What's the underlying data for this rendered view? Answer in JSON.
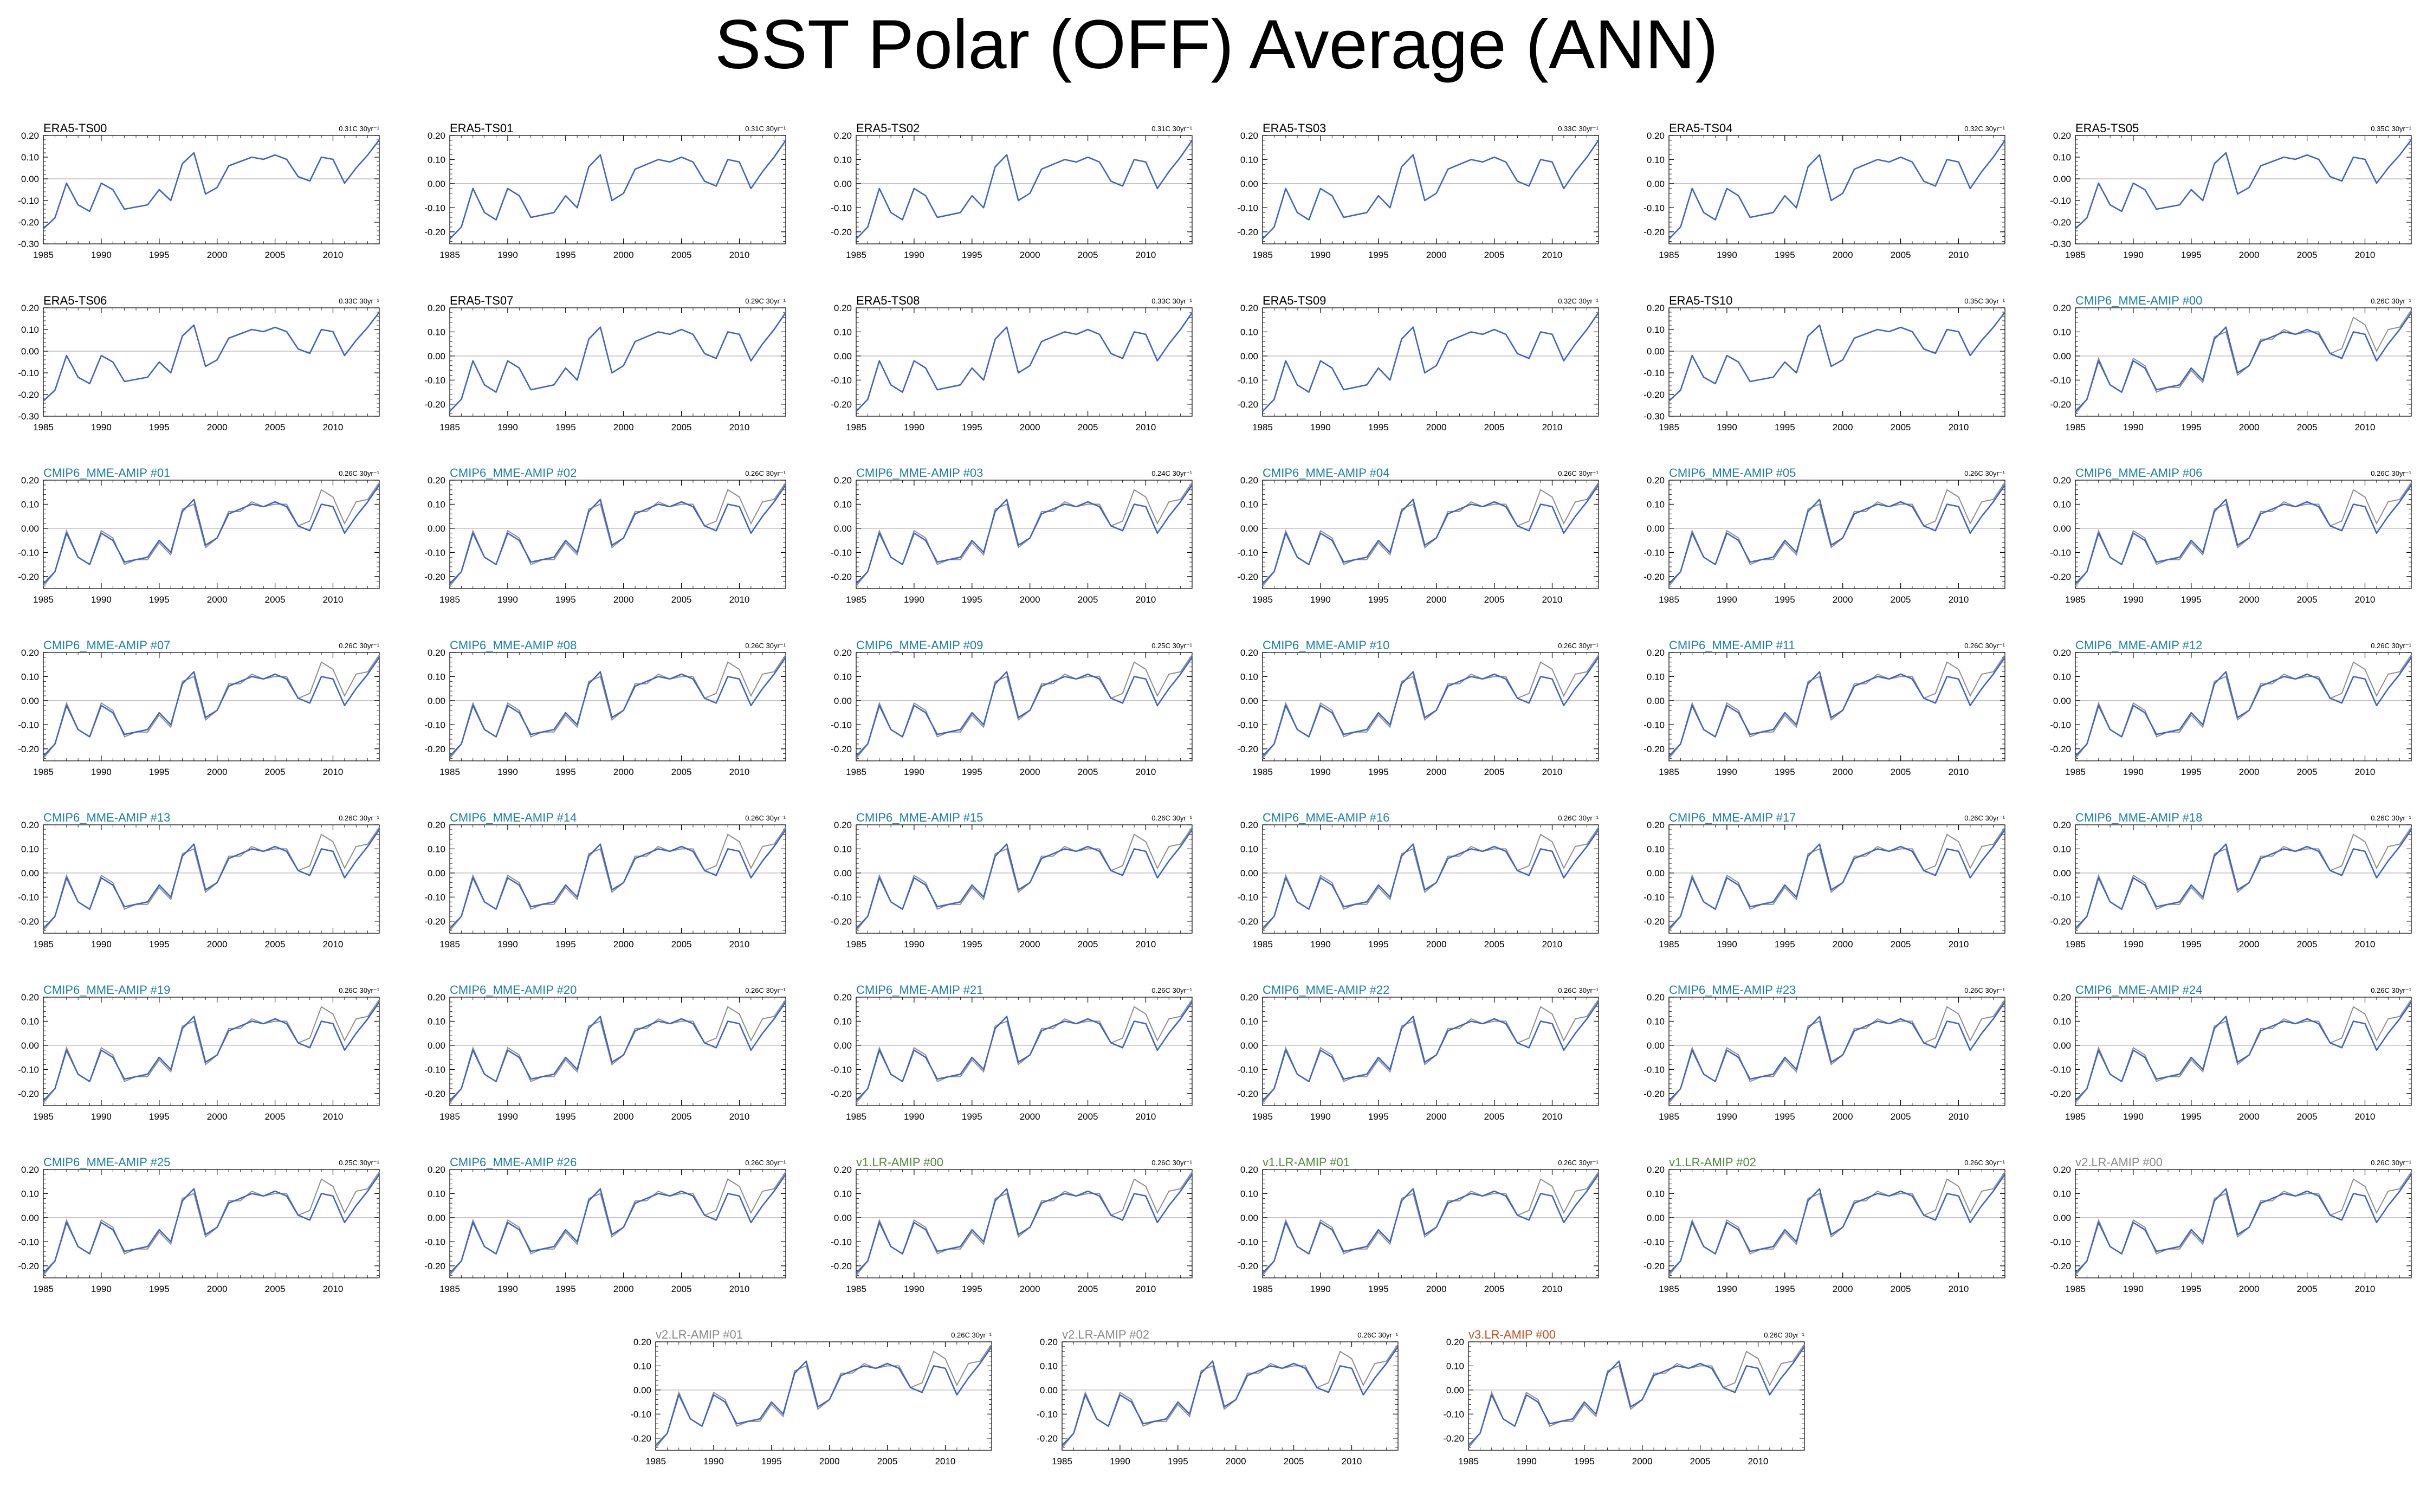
{
  "title": "SST Polar (OFF) Average (ANN)",
  "colors": {
    "obs": "#000000",
    "cmip": "#1a7fa8",
    "v1": "#4f8a3c",
    "v2": "#8a8a8a",
    "v3": "#c0501f",
    "model_line": "#3a64c8",
    "ref_line": "#8f8f8f",
    "zero_line": "#b0b0b0"
  },
  "chart_data": {
    "type": "line",
    "x_start": 1985,
    "x_end": 2014,
    "x_ticks": [
      1985,
      1990,
      1995,
      2000,
      2005,
      2010
    ],
    "reference": [
      -0.24,
      -0.18,
      -0.01,
      -0.12,
      -0.15,
      -0.01,
      -0.04,
      -0.15,
      -0.13,
      -0.13,
      -0.06,
      -0.11,
      0.08,
      0.1,
      -0.08,
      -0.04,
      0.07,
      0.07,
      0.11,
      0.09,
      0.1,
      0.1,
      0.01,
      0.03,
      0.16,
      0.13,
      0.02,
      0.11,
      0.12,
      0.19
    ],
    "model": [
      -0.23,
      -0.18,
      -0.02,
      -0.12,
      -0.15,
      -0.02,
      -0.05,
      -0.14,
      -0.13,
      -0.12,
      -0.05,
      -0.1,
      0.07,
      0.12,
      -0.07,
      -0.04,
      0.06,
      0.08,
      0.1,
      0.09,
      0.11,
      0.09,
      0.01,
      -0.01,
      0.1,
      0.09,
      -0.02,
      0.05,
      0.11,
      0.18
    ],
    "panels": [
      {
        "name": "ERA5-TS00",
        "trend": "0.31C 30yr⁻¹",
        "group": "obs",
        "ylim": [
          -0.3,
          0.2
        ],
        "yticks": [
          "0.20",
          "0.10",
          "0.00",
          "-0.10",
          "-0.20",
          "-0.30"
        ]
      },
      {
        "name": "ERA5-TS01",
        "trend": "0.31C 30yr⁻¹",
        "group": "obs",
        "ylim": [
          -0.25,
          0.2
        ],
        "yticks": [
          "0.20",
          "0.10",
          "0.00",
          "-0.10",
          "-0.20"
        ]
      },
      {
        "name": "ERA5-TS02",
        "trend": "0.31C 30yr⁻¹",
        "group": "obs",
        "ylim": [
          -0.25,
          0.2
        ],
        "yticks": [
          "0.20",
          "0.10",
          "0.00",
          "-0.10",
          "-0.20"
        ]
      },
      {
        "name": "ERA5-TS03",
        "trend": "0.33C 30yr⁻¹",
        "group": "obs",
        "ylim": [
          -0.25,
          0.2
        ],
        "yticks": [
          "0.20",
          "0.10",
          "0.00",
          "-0.10",
          "-0.20"
        ]
      },
      {
        "name": "ERA5-TS04",
        "trend": "0.32C 30yr⁻¹",
        "group": "obs",
        "ylim": [
          -0.25,
          0.2
        ],
        "yticks": [
          "0.20",
          "0.10",
          "0.00",
          "-0.10",
          "-0.20"
        ]
      },
      {
        "name": "ERA5-TS05",
        "trend": "0.35C 30yr⁻¹",
        "group": "obs",
        "ylim": [
          -0.3,
          0.2
        ],
        "yticks": [
          "0.20",
          "0.10",
          "0.00",
          "-0.10",
          "-0.20",
          "-0.30"
        ]
      },
      {
        "name": "ERA5-TS06",
        "trend": "0.33C 30yr⁻¹",
        "group": "obs",
        "ylim": [
          -0.3,
          0.2
        ],
        "yticks": [
          "0.20",
          "0.10",
          "0.00",
          "-0.10",
          "-0.20",
          "-0.30"
        ]
      },
      {
        "name": "ERA5-TS07",
        "trend": "0.29C 30yr⁻¹",
        "group": "obs",
        "ylim": [
          -0.25,
          0.2
        ],
        "yticks": [
          "0.20",
          "0.10",
          "0.00",
          "-0.10",
          "-0.20"
        ]
      },
      {
        "name": "ERA5-TS08",
        "trend": "0.33C 30yr⁻¹",
        "group": "obs",
        "ylim": [
          -0.25,
          0.2
        ],
        "yticks": [
          "0.20",
          "0.10",
          "0.00",
          "-0.10",
          "-0.20"
        ]
      },
      {
        "name": "ERA5-TS09",
        "trend": "0.32C 30yr⁻¹",
        "group": "obs",
        "ylim": [
          -0.25,
          0.2
        ],
        "yticks": [
          "0.20",
          "0.10",
          "0.00",
          "-0.10",
          "-0.20"
        ]
      },
      {
        "name": "ERA5-TS10",
        "trend": "0.35C 30yr⁻¹",
        "group": "obs",
        "ylim": [
          -0.3,
          0.2
        ],
        "yticks": [
          "0.20",
          "0.10",
          "0.00",
          "-0.10",
          "-0.20",
          "-0.30"
        ]
      },
      {
        "name": "CMIP6_MME-AMIP  #00",
        "trend": "0.26C 30yr⁻¹",
        "group": "cmip",
        "ylim": [
          -0.25,
          0.2
        ],
        "yticks": [
          "0.20",
          "0.10",
          "0.00",
          "-0.10",
          "-0.20"
        ]
      },
      {
        "name": "CMIP6_MME-AMIP  #01",
        "trend": "0.26C 30yr⁻¹",
        "group": "cmip",
        "ylim": [
          -0.25,
          0.2
        ],
        "yticks": [
          "0.20",
          "0.10",
          "0.00",
          "-0.10",
          "-0.20"
        ]
      },
      {
        "name": "CMIP6_MME-AMIP  #02",
        "trend": "0.26C 30yr⁻¹",
        "group": "cmip",
        "ylim": [
          -0.25,
          0.2
        ],
        "yticks": [
          "0.20",
          "0.10",
          "0.00",
          "-0.10",
          "-0.20"
        ]
      },
      {
        "name": "CMIP6_MME-AMIP  #03",
        "trend": "0.24C 30yr⁻¹",
        "group": "cmip",
        "ylim": [
          -0.25,
          0.2
        ],
        "yticks": [
          "0.20",
          "0.10",
          "0.00",
          "-0.10",
          "-0.20"
        ]
      },
      {
        "name": "CMIP6_MME-AMIP  #04",
        "trend": "0.26C 30yr⁻¹",
        "group": "cmip",
        "ylim": [
          -0.25,
          0.2
        ],
        "yticks": [
          "0.20",
          "0.10",
          "0.00",
          "-0.10",
          "-0.20"
        ]
      },
      {
        "name": "CMIP6_MME-AMIP  #05",
        "trend": "0.26C 30yr⁻¹",
        "group": "cmip",
        "ylim": [
          -0.25,
          0.2
        ],
        "yticks": [
          "0.20",
          "0.10",
          "0.00",
          "-0.10",
          "-0.20"
        ]
      },
      {
        "name": "CMIP6_MME-AMIP  #06",
        "trend": "0.26C 30yr⁻¹",
        "group": "cmip",
        "ylim": [
          -0.25,
          0.2
        ],
        "yticks": [
          "0.20",
          "0.10",
          "0.00",
          "-0.10",
          "-0.20"
        ]
      },
      {
        "name": "CMIP6_MME-AMIP  #07",
        "trend": "0.26C 30yr⁻¹",
        "group": "cmip",
        "ylim": [
          -0.25,
          0.2
        ],
        "yticks": [
          "0.20",
          "0.10",
          "0.00",
          "-0.10",
          "-0.20"
        ]
      },
      {
        "name": "CMIP6_MME-AMIP  #08",
        "trend": "0.26C 30yr⁻¹",
        "group": "cmip",
        "ylim": [
          -0.25,
          0.2
        ],
        "yticks": [
          "0.20",
          "0.10",
          "0.00",
          "-0.10",
          "-0.20"
        ]
      },
      {
        "name": "CMIP6_MME-AMIP  #09",
        "trend": "0.25C 30yr⁻¹",
        "group": "cmip",
        "ylim": [
          -0.25,
          0.2
        ],
        "yticks": [
          "0.20",
          "0.10",
          "0.00",
          "-0.10",
          "-0.20"
        ]
      },
      {
        "name": "CMIP6_MME-AMIP  #10",
        "trend": "0.26C 30yr⁻¹",
        "group": "cmip",
        "ylim": [
          -0.25,
          0.2
        ],
        "yticks": [
          "0.20",
          "0.10",
          "0.00",
          "-0.10",
          "-0.20"
        ]
      },
      {
        "name": "CMIP6_MME-AMIP  #11",
        "trend": "0.26C 30yr⁻¹",
        "group": "cmip",
        "ylim": [
          -0.25,
          0.2
        ],
        "yticks": [
          "0.20",
          "0.10",
          "0.00",
          "-0.10",
          "-0.20"
        ]
      },
      {
        "name": "CMIP6_MME-AMIP  #12",
        "trend": "0.26C 30yr⁻¹",
        "group": "cmip",
        "ylim": [
          -0.25,
          0.2
        ],
        "yticks": [
          "0.20",
          "0.10",
          "0.00",
          "-0.10",
          "-0.20"
        ]
      },
      {
        "name": "CMIP6_MME-AMIP  #13",
        "trend": "0.26C 30yr⁻¹",
        "group": "cmip",
        "ylim": [
          -0.25,
          0.2
        ],
        "yticks": [
          "0.20",
          "0.10",
          "0.00",
          "-0.10",
          "-0.20"
        ]
      },
      {
        "name": "CMIP6_MME-AMIP  #14",
        "trend": "0.26C 30yr⁻¹",
        "group": "cmip",
        "ylim": [
          -0.25,
          0.2
        ],
        "yticks": [
          "0.20",
          "0.10",
          "0.00",
          "-0.10",
          "-0.20"
        ]
      },
      {
        "name": "CMIP6_MME-AMIP  #15",
        "trend": "0.26C 30yr⁻¹",
        "group": "cmip",
        "ylim": [
          -0.25,
          0.2
        ],
        "yticks": [
          "0.20",
          "0.10",
          "0.00",
          "-0.10",
          "-0.20"
        ]
      },
      {
        "name": "CMIP6_MME-AMIP  #16",
        "trend": "0.26C 30yr⁻¹",
        "group": "cmip",
        "ylim": [
          -0.25,
          0.2
        ],
        "yticks": [
          "0.20",
          "0.10",
          "0.00",
          "-0.10",
          "-0.20"
        ]
      },
      {
        "name": "CMIP6_MME-AMIP  #17",
        "trend": "0.26C 30yr⁻¹",
        "group": "cmip",
        "ylim": [
          -0.25,
          0.2
        ],
        "yticks": [
          "0.20",
          "0.10",
          "0.00",
          "-0.10",
          "-0.20"
        ]
      },
      {
        "name": "CMIP6_MME-AMIP  #18",
        "trend": "0.26C 30yr⁻¹",
        "group": "cmip",
        "ylim": [
          -0.25,
          0.2
        ],
        "yticks": [
          "0.20",
          "0.10",
          "0.00",
          "-0.10",
          "-0.20"
        ]
      },
      {
        "name": "CMIP6_MME-AMIP  #19",
        "trend": "0.26C 30yr⁻¹",
        "group": "cmip",
        "ylim": [
          -0.25,
          0.2
        ],
        "yticks": [
          "0.20",
          "0.10",
          "0.00",
          "-0.10",
          "-0.20"
        ]
      },
      {
        "name": "CMIP6_MME-AMIP  #20",
        "trend": "0.26C 30yr⁻¹",
        "group": "cmip",
        "ylim": [
          -0.25,
          0.2
        ],
        "yticks": [
          "0.20",
          "0.10",
          "0.00",
          "-0.10",
          "-0.20"
        ]
      },
      {
        "name": "CMIP6_MME-AMIP  #21",
        "trend": "0.26C 30yr⁻¹",
        "group": "cmip",
        "ylim": [
          -0.25,
          0.2
        ],
        "yticks": [
          "0.20",
          "0.10",
          "0.00",
          "-0.10",
          "-0.20"
        ]
      },
      {
        "name": "CMIP6_MME-AMIP  #22",
        "trend": "0.26C 30yr⁻¹",
        "group": "cmip",
        "ylim": [
          -0.25,
          0.2
        ],
        "yticks": [
          "0.20",
          "0.10",
          "0.00",
          "-0.10",
          "-0.20"
        ]
      },
      {
        "name": "CMIP6_MME-AMIP  #23",
        "trend": "0.26C 30yr⁻¹",
        "group": "cmip",
        "ylim": [
          -0.25,
          0.2
        ],
        "yticks": [
          "0.20",
          "0.10",
          "0.00",
          "-0.10",
          "-0.20"
        ]
      },
      {
        "name": "CMIP6_MME-AMIP  #24",
        "trend": "0.26C 30yr⁻¹",
        "group": "cmip",
        "ylim": [
          -0.25,
          0.2
        ],
        "yticks": [
          "0.20",
          "0.10",
          "0.00",
          "-0.10",
          "-0.20"
        ]
      },
      {
        "name": "CMIP6_MME-AMIP  #25",
        "trend": "0.25C 30yr⁻¹",
        "group": "cmip",
        "ylim": [
          -0.25,
          0.2
        ],
        "yticks": [
          "0.20",
          "0.10",
          "0.00",
          "-0.10",
          "-0.20"
        ]
      },
      {
        "name": "CMIP6_MME-AMIP  #26",
        "trend": "0.26C 30yr⁻¹",
        "group": "cmip",
        "ylim": [
          -0.25,
          0.2
        ],
        "yticks": [
          "0.20",
          "0.10",
          "0.00",
          "-0.10",
          "-0.20"
        ]
      },
      {
        "name": "v1.LR-AMIP  #00",
        "trend": "0.26C 30yr⁻¹",
        "group": "v1",
        "ylim": [
          -0.25,
          0.2
        ],
        "yticks": [
          "0.20",
          "0.10",
          "0.00",
          "-0.10",
          "-0.20"
        ]
      },
      {
        "name": "v1.LR-AMIP  #01",
        "trend": "0.26C 30yr⁻¹",
        "group": "v1",
        "ylim": [
          -0.25,
          0.2
        ],
        "yticks": [
          "0.20",
          "0.10",
          "0.00",
          "-0.10",
          "-0.20"
        ]
      },
      {
        "name": "v1.LR-AMIP  #02",
        "trend": "0.26C 30yr⁻¹",
        "group": "v1",
        "ylim": [
          -0.25,
          0.2
        ],
        "yticks": [
          "0.20",
          "0.10",
          "0.00",
          "-0.10",
          "-0.20"
        ]
      },
      {
        "name": "v2.LR-AMIP  #00",
        "trend": "0.26C 30yr⁻¹",
        "group": "v2",
        "ylim": [
          -0.25,
          0.2
        ],
        "yticks": [
          "0.20",
          "0.10",
          "0.00",
          "-0.10",
          "-0.20"
        ]
      },
      {
        "name": "v2.LR-AMIP  #01",
        "trend": "0.26C 30yr⁻¹",
        "group": "v2",
        "ylim": [
          -0.25,
          0.2
        ],
        "yticks": [
          "0.20",
          "0.10",
          "0.00",
          "-0.10",
          "-0.20"
        ]
      },
      {
        "name": "v2.LR-AMIP  #02",
        "trend": "0.26C 30yr⁻¹",
        "group": "v2",
        "ylim": [
          -0.25,
          0.2
        ],
        "yticks": [
          "0.20",
          "0.10",
          "0.00",
          "-0.10",
          "-0.20"
        ]
      },
      {
        "name": "v3.LR-AMIP  #00",
        "trend": "0.26C 30yr⁻¹",
        "group": "v3",
        "ylim": [
          -0.25,
          0.2
        ],
        "yticks": [
          "0.20",
          "0.10",
          "0.00",
          "-0.10",
          "-0.20"
        ]
      }
    ]
  }
}
